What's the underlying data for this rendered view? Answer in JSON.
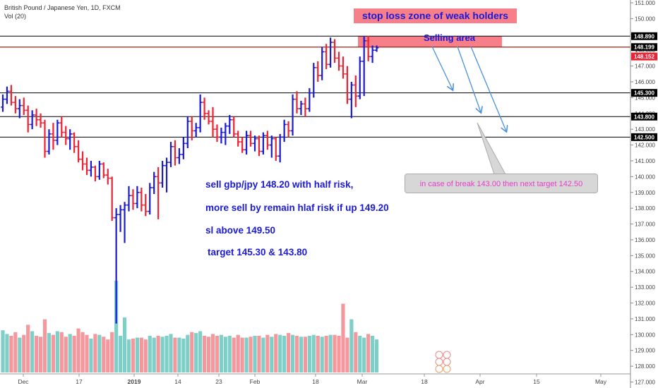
{
  "header": {
    "symbol_line": "British Pound / Japanese Yen, 1D, FXCM",
    "volume_line": "Vol (20)"
  },
  "annotations": {
    "stop_zone": "stop loss zone of weak holders",
    "selling_area": "Selling area",
    "note_1": "sell gbp/jpy 148.20 with half risk,",
    "note_2": "more sell by remain hlaf risk if up 149.20",
    "note_3": "sl above 149.50",
    "note_4": "target 145.30 & 143.80",
    "callout": "in case of break 143.00 then next target 142.50"
  },
  "colors": {
    "up": "#1a1ad6",
    "down": "#ee2233",
    "vol_up": "#7fcfc9",
    "vol_down": "#f4989d",
    "price_label": "#ee2233",
    "level_label": "#000000",
    "arrow": "#4a90e2"
  },
  "chart_data": {
    "type": "ohlc",
    "title": "British Pound / Japanese Yen, 1D, FXCM",
    "ylim": [
      126.8,
      151.0
    ],
    "y_ticks": [
      "127.000",
      "128.000",
      "129.000",
      "130.000",
      "131.000",
      "132.000",
      "133.000",
      "134.000",
      "135.000",
      "136.000",
      "137.000",
      "138.000",
      "139.000",
      "140.000",
      "141.000",
      "142.000",
      "143.000",
      "144.000",
      "145.000",
      "146.000",
      "147.000",
      "148.000",
      "149.000",
      "150.000",
      "151.000"
    ],
    "x_ticks": [
      "Dec",
      "17",
      "2019",
      "14",
      "23",
      "Feb",
      "18",
      "Mar",
      "18",
      "Apr",
      "15",
      "May"
    ],
    "levels": [
      {
        "value": 148.89,
        "label": "148.890"
      },
      {
        "value": 145.3,
        "label": "145.300"
      },
      {
        "value": 143.8,
        "label": "143.800"
      },
      {
        "value": 142.5,
        "label": "142.500"
      }
    ],
    "price_line": {
      "value": 148.199,
      "label": "148.199"
    },
    "last_price": {
      "value": 148.152,
      "label": "148.152"
    },
    "zones": [
      {
        "name": "stop-zone",
        "from": 148.199,
        "to": 148.89,
        "x_from": "Feb 26",
        "x_to": "Mar 20"
      }
    ],
    "bars": [
      {
        "d": "Nov 26",
        "o": 144.4,
        "h": 145.2,
        "l": 144.1,
        "c": 144.9
      },
      {
        "d": "Nov 27",
        "o": 144.9,
        "h": 145.7,
        "l": 144.6,
        "c": 145.4
      },
      {
        "d": "Nov 28",
        "o": 145.4,
        "h": 145.8,
        "l": 144.5,
        "c": 144.7
      },
      {
        "d": "Nov 29",
        "o": 144.7,
        "h": 145.1,
        "l": 144.0,
        "c": 144.3
      },
      {
        "d": "Nov 30",
        "o": 144.3,
        "h": 144.9,
        "l": 143.7,
        "c": 144.5
      },
      {
        "d": "Dec 03",
        "o": 144.5,
        "h": 145.0,
        "l": 143.9,
        "c": 144.2
      },
      {
        "d": "Dec 04",
        "o": 144.2,
        "h": 144.5,
        "l": 142.8,
        "c": 143.3
      },
      {
        "d": "Dec 05",
        "o": 143.3,
        "h": 144.2,
        "l": 143.0,
        "c": 143.9
      },
      {
        "d": "Dec 06",
        "o": 143.9,
        "h": 144.3,
        "l": 143.2,
        "c": 143.6
      },
      {
        "d": "Dec 07",
        "o": 143.6,
        "h": 144.0,
        "l": 143.1,
        "c": 143.4
      },
      {
        "d": "Dec 10",
        "o": 143.4,
        "h": 143.6,
        "l": 141.2,
        "c": 141.6
      },
      {
        "d": "Dec 11",
        "o": 141.6,
        "h": 143.0,
        "l": 141.4,
        "c": 142.7
      },
      {
        "d": "Dec 12",
        "o": 142.7,
        "h": 143.4,
        "l": 141.7,
        "c": 142.3
      },
      {
        "d": "Dec 13",
        "o": 142.3,
        "h": 143.6,
        "l": 142.0,
        "c": 143.4
      },
      {
        "d": "Dec 14",
        "o": 143.4,
        "h": 143.8,
        "l": 142.5,
        "c": 142.8
      },
      {
        "d": "Dec 17",
        "o": 142.8,
        "h": 143.2,
        "l": 142.0,
        "c": 142.4
      },
      {
        "d": "Dec 18",
        "o": 142.4,
        "h": 143.0,
        "l": 141.7,
        "c": 142.7
      },
      {
        "d": "Dec 19",
        "o": 142.7,
        "h": 142.8,
        "l": 141.5,
        "c": 141.9
      },
      {
        "d": "Dec 20",
        "o": 141.9,
        "h": 142.3,
        "l": 140.9,
        "c": 141.1
      },
      {
        "d": "Dec 21",
        "o": 141.1,
        "h": 141.6,
        "l": 140.4,
        "c": 140.8
      },
      {
        "d": "Dec 24",
        "o": 140.8,
        "h": 141.2,
        "l": 140.1,
        "c": 140.4
      },
      {
        "d": "Dec 26",
        "o": 140.4,
        "h": 141.0,
        "l": 140.0,
        "c": 140.6
      },
      {
        "d": "Dec 27",
        "o": 140.6,
        "h": 140.7,
        "l": 139.7,
        "c": 140.0
      },
      {
        "d": "Dec 28",
        "o": 140.0,
        "h": 141.0,
        "l": 139.8,
        "c": 140.8
      },
      {
        "d": "Dec 31",
        "o": 140.8,
        "h": 140.9,
        "l": 139.9,
        "c": 140.1
      },
      {
        "d": "Jan 01",
        "o": 140.1,
        "h": 140.5,
        "l": 139.5,
        "c": 139.9
      },
      {
        "d": "Jan 02",
        "o": 139.9,
        "h": 140.0,
        "l": 137.2,
        "c": 137.4
      },
      {
        "d": "Jan 03",
        "o": 137.4,
        "h": 138.0,
        "l": 130.7,
        "c": 137.6
      },
      {
        "d": "Jan 04",
        "o": 137.6,
        "h": 138.2,
        "l": 136.5,
        "c": 137.9
      },
      {
        "d": "Jan 07",
        "o": 137.9,
        "h": 138.4,
        "l": 135.8,
        "c": 138.2
      },
      {
        "d": "Jan 08",
        "o": 138.2,
        "h": 139.4,
        "l": 137.8,
        "c": 138.8
      },
      {
        "d": "Jan 09",
        "o": 138.8,
        "h": 139.2,
        "l": 137.9,
        "c": 138.3
      },
      {
        "d": "Jan 10",
        "o": 138.3,
        "h": 139.4,
        "l": 138.0,
        "c": 139.0
      },
      {
        "d": "Jan 11",
        "o": 139.0,
        "h": 139.3,
        "l": 137.8,
        "c": 138.2
      },
      {
        "d": "Jan 14",
        "o": 138.2,
        "h": 138.9,
        "l": 137.5,
        "c": 137.8
      },
      {
        "d": "Jan 15",
        "o": 137.8,
        "h": 139.6,
        "l": 137.6,
        "c": 139.3
      },
      {
        "d": "Jan 16",
        "o": 139.3,
        "h": 140.3,
        "l": 138.9,
        "c": 140.0
      },
      {
        "d": "Jan 17",
        "o": 140.0,
        "h": 140.6,
        "l": 137.3,
        "c": 139.6
      },
      {
        "d": "Jan 18",
        "o": 139.6,
        "h": 141.0,
        "l": 139.3,
        "c": 140.7
      },
      {
        "d": "Jan 21",
        "o": 140.7,
        "h": 141.2,
        "l": 139.0,
        "c": 140.9
      },
      {
        "d": "Jan 22",
        "o": 140.9,
        "h": 142.2,
        "l": 140.6,
        "c": 141.9
      },
      {
        "d": "Jan 23",
        "o": 141.9,
        "h": 142.3,
        "l": 140.7,
        "c": 141.2
      },
      {
        "d": "Jan 24",
        "o": 141.2,
        "h": 141.8,
        "l": 140.8,
        "c": 141.4
      },
      {
        "d": "Jan 25",
        "o": 141.4,
        "h": 142.5,
        "l": 141.1,
        "c": 142.1
      },
      {
        "d": "Jan 28",
        "o": 142.1,
        "h": 143.8,
        "l": 141.8,
        "c": 143.5
      },
      {
        "d": "Jan 29",
        "o": 143.5,
        "h": 143.8,
        "l": 142.3,
        "c": 142.9
      },
      {
        "d": "Jan 30",
        "o": 142.9,
        "h": 143.4,
        "l": 142.5,
        "c": 143.1
      },
      {
        "d": "Jan 31",
        "o": 143.1,
        "h": 145.2,
        "l": 142.8,
        "c": 144.7
      },
      {
        "d": "Feb 01",
        "o": 144.7,
        "h": 145.0,
        "l": 143.6,
        "c": 144.0
      },
      {
        "d": "Feb 04",
        "o": 144.0,
        "h": 144.2,
        "l": 143.3,
        "c": 143.5
      },
      {
        "d": "Feb 05",
        "o": 143.5,
        "h": 144.4,
        "l": 142.5,
        "c": 143.0
      },
      {
        "d": "Feb 06",
        "o": 143.0,
        "h": 143.3,
        "l": 142.2,
        "c": 142.5
      },
      {
        "d": "Feb 07",
        "o": 142.5,
        "h": 143.1,
        "l": 142.1,
        "c": 142.8
      },
      {
        "d": "Feb 08",
        "o": 142.8,
        "h": 143.4,
        "l": 142.0,
        "c": 143.2
      },
      {
        "d": "Feb 11",
        "o": 143.2,
        "h": 143.9,
        "l": 142.7,
        "c": 143.6
      },
      {
        "d": "Feb 12",
        "o": 143.6,
        "h": 143.8,
        "l": 142.5,
        "c": 142.7
      },
      {
        "d": "Feb 13",
        "o": 142.7,
        "h": 142.9,
        "l": 141.9,
        "c": 142.2
      },
      {
        "d": "Feb 14",
        "o": 142.2,
        "h": 142.5,
        "l": 141.5,
        "c": 141.7
      },
      {
        "d": "Feb 15",
        "o": 141.7,
        "h": 142.9,
        "l": 141.4,
        "c": 142.6
      },
      {
        "d": "Feb 18",
        "o": 142.6,
        "h": 142.9,
        "l": 141.9,
        "c": 142.1
      },
      {
        "d": "Feb 19",
        "o": 142.1,
        "h": 142.6,
        "l": 141.6,
        "c": 142.4
      },
      {
        "d": "Feb 20",
        "o": 142.4,
        "h": 142.6,
        "l": 141.3,
        "c": 141.6
      },
      {
        "d": "Feb 21",
        "o": 141.6,
        "h": 142.8,
        "l": 141.4,
        "c": 142.6
      },
      {
        "d": "Feb 22",
        "o": 142.6,
        "h": 142.9,
        "l": 141.7,
        "c": 142.0
      },
      {
        "d": "Feb 25",
        "o": 142.0,
        "h": 142.6,
        "l": 141.2,
        "c": 142.4
      },
      {
        "d": "Feb 26",
        "o": 142.4,
        "h": 142.5,
        "l": 141.0,
        "c": 141.3
      },
      {
        "d": "Feb 27",
        "o": 141.3,
        "h": 142.7,
        "l": 140.9,
        "c": 142.5
      },
      {
        "d": "Feb 28",
        "o": 142.5,
        "h": 143.6,
        "l": 142.2,
        "c": 143.3
      },
      {
        "d": "Mar 01",
        "o": 143.3,
        "h": 143.5,
        "l": 142.5,
        "c": 142.9
      },
      {
        "d": "Mar 04",
        "o": 142.9,
        "h": 145.2,
        "l": 142.6,
        "c": 144.9
      },
      {
        "d": "Mar 05",
        "o": 144.9,
        "h": 145.4,
        "l": 144.0,
        "c": 144.3
      },
      {
        "d": "Mar 06",
        "o": 144.3,
        "h": 144.8,
        "l": 143.9,
        "c": 144.6
      },
      {
        "d": "Mar 07",
        "o": 144.6,
        "h": 145.0,
        "l": 143.8,
        "c": 144.3
      },
      {
        "d": "Mar 08",
        "o": 144.3,
        "h": 145.6,
        "l": 144.1,
        "c": 145.3
      },
      {
        "d": "Mar 11",
        "o": 145.3,
        "h": 147.2,
        "l": 145.0,
        "c": 146.9
      },
      {
        "d": "Mar 12",
        "o": 146.9,
        "h": 147.3,
        "l": 146.0,
        "c": 146.4
      },
      {
        "d": "Mar 13",
        "o": 146.4,
        "h": 148.2,
        "l": 146.1,
        "c": 147.9
      },
      {
        "d": "Mar 14",
        "o": 147.9,
        "h": 148.4,
        "l": 146.8,
        "c": 147.1
      },
      {
        "d": "Mar 15",
        "o": 147.1,
        "h": 148.8,
        "l": 146.9,
        "c": 148.5
      },
      {
        "d": "Mar 18",
        "o": 148.5,
        "h": 148.7,
        "l": 147.2,
        "c": 147.5
      },
      {
        "d": "Mar 19",
        "o": 147.5,
        "h": 147.9,
        "l": 146.7,
        "c": 147.0
      },
      {
        "d": "Mar 20",
        "o": 147.0,
        "h": 147.6,
        "l": 146.2,
        "c": 146.5
      },
      {
        "d": "Mar 21",
        "o": 146.5,
        "h": 147.0,
        "l": 144.6,
        "c": 144.9
      },
      {
        "d": "Mar 22",
        "o": 144.9,
        "h": 146.0,
        "l": 143.7,
        "c": 145.8
      },
      {
        "d": "Mar 25",
        "o": 145.8,
        "h": 146.4,
        "l": 144.4,
        "c": 145.1
      },
      {
        "d": "Mar 26",
        "o": 145.1,
        "h": 147.6,
        "l": 144.9,
        "c": 147.3
      },
      {
        "d": "Mar 27",
        "o": 147.3,
        "h": 148.9,
        "l": 145.1,
        "c": 148.6
      },
      {
        "d": "Mar 28",
        "o": 148.6,
        "h": 148.9,
        "l": 147.3,
        "c": 147.6
      },
      {
        "d": "Mar 29",
        "o": 147.6,
        "h": 148.3,
        "l": 147.2,
        "c": 148.0
      },
      {
        "d": "Apr 01",
        "o": 148.0,
        "h": 148.3,
        "l": 147.9,
        "c": 148.15
      }
    ],
    "volume_scale_max": 100,
    "volumes": [
      46,
      42,
      40,
      44,
      38,
      41,
      52,
      45,
      40,
      39,
      58,
      43,
      41,
      45,
      44,
      39,
      42,
      40,
      48,
      44,
      41,
      37,
      42,
      41,
      39,
      36,
      44,
      100,
      40,
      60,
      36,
      37,
      38,
      38,
      36,
      40,
      38,
      40,
      39,
      40,
      42,
      38,
      38,
      37,
      41,
      44,
      43,
      45,
      40,
      39,
      42,
      40,
      41,
      39,
      40,
      38,
      41,
      38,
      38,
      39,
      40,
      40,
      38,
      41,
      39,
      42,
      41,
      40,
      43,
      41,
      40,
      39,
      39,
      40,
      41,
      40,
      39,
      40,
      41,
      41,
      40,
      75,
      38,
      58,
      44,
      40,
      38,
      42,
      40,
      36,
      5
    ]
  }
}
